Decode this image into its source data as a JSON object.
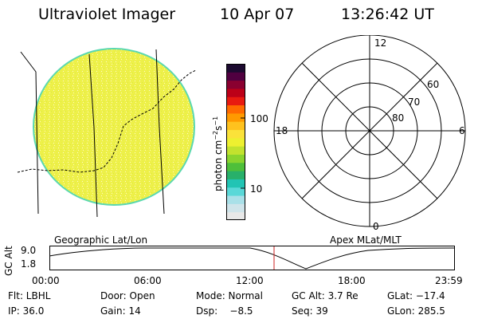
{
  "header": {
    "instrument": "Ultraviolet Imager",
    "date": "10 Apr 07",
    "time": "13:26:42 UT"
  },
  "colorbar": {
    "unit_label": "photon cm",
    "unit_exp1": "−2",
    "unit_mid": "s",
    "unit_exp2": "−1",
    "tick_high": "100",
    "tick_low": "10",
    "colors": [
      "#e8e8e8",
      "#cfe4ea",
      "#a9e0e8",
      "#5ad8d8",
      "#22c4b4",
      "#28b06a",
      "#4ebf3a",
      "#8ad42e",
      "#c2e22e",
      "#eef030",
      "#fbe23a",
      "#ffc21e",
      "#ff9a00",
      "#ff6a00",
      "#e81a10",
      "#bc0018",
      "#8a0030",
      "#500040",
      "#1c0a30"
    ]
  },
  "polar_plot": {
    "labels": {
      "top": "12",
      "left": "18",
      "right": "6",
      "bottom": "0",
      "ring_60": "60",
      "ring_70": "70",
      "ring_80": "80"
    }
  },
  "altitude_plot": {
    "left_label": "Geographic Lat/Lon",
    "right_label": "Apex MLat/MLT",
    "y_axis_label": "GC Alt",
    "y_tick_top": "9.0",
    "y_tick_bottom": "1.8",
    "x_ticks": [
      "00:00",
      "06:00",
      "12:00",
      "18:00",
      "23:59"
    ],
    "marker_color": "#cc2222"
  },
  "info": {
    "filter": "Flt: LBHL",
    "ip": "IP: 36.0",
    "door": "Door: Open",
    "gain": "Gain: 14",
    "mode": "Mode: Normal",
    "dsp": "Dsp:    −8.5",
    "gc_alt": "GC Alt: 3.7 Re",
    "seq": "Seq: 39",
    "glat": "GLat: −17.4",
    "glon": "GLon: 285.5"
  }
}
